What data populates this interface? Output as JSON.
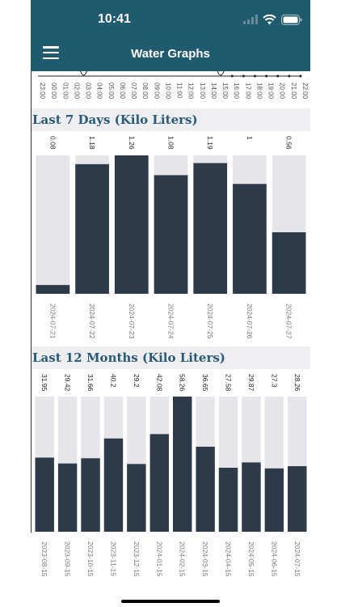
{
  "status": {
    "time": "10:41"
  },
  "header": {
    "title": "Water Graphs"
  },
  "top_axis": {
    "hours": [
      "23:00",
      "00:00",
      "01:00",
      "02:00",
      "03:00",
      "04:00",
      "05:00",
      "06:00",
      "07:00",
      "08:00",
      "09:00",
      "10:00",
      "11:00",
      "12:00",
      "13:00",
      "14:00",
      "15:00",
      "16:00",
      "17:00",
      "18:00",
      "19:00",
      "20:00",
      "21:00",
      "22:00"
    ]
  },
  "colors": {
    "header": "#1f5a6e",
    "bar": "#2e3a48",
    "track": "#e6e6ea",
    "section_title": "#2a5a77"
  },
  "sections": {
    "days_title": "Last 7 Days (Kilo Liters)",
    "months_title": "Last 12 Months (Kilo Liters)"
  },
  "chart_data": [
    {
      "type": "bar",
      "title": "Last 7 Days (Kilo Liters)",
      "categories": [
        "2024-07-21",
        "2024-07-22",
        "2024-07-23",
        "2024-07-24",
        "2024-07-25",
        "2024-07-26",
        "2024-07-27"
      ],
      "values": [
        0.08,
        1.18,
        1.26,
        1.08,
        1.19,
        1,
        0.56
      ],
      "labels": [
        "0.08",
        "1.18",
        "1.26",
        "1.08",
        "1.19",
        "1",
        "0.56"
      ],
      "ylim": [
        0,
        1.26
      ]
    },
    {
      "type": "bar",
      "title": "Last 12 Months (Kilo Liters)",
      "categories": [
        "2023-08-15",
        "2023-09-15",
        "2023-10-15",
        "2023-11-15",
        "2023-12-15",
        "2024-01-15",
        "2024-02-15",
        "2024-03-15",
        "2024-04-15",
        "2024-05-15",
        "2024-06-15",
        "2024-07-15"
      ],
      "values": [
        31.95,
        29.42,
        31.66,
        40.2,
        29.2,
        42.08,
        58.26,
        36.65,
        27.58,
        29.87,
        27.3,
        28.26
      ],
      "labels": [
        "31.95",
        "29.42",
        "31.66",
        "40.2",
        "29.2",
        "42.08",
        "58.26",
        "36.65",
        "27.58",
        "29.87",
        "27.3",
        "28.26"
      ],
      "ylim": [
        0,
        58.26
      ]
    }
  ]
}
